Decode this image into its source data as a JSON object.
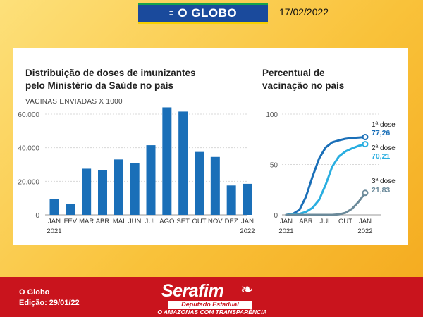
{
  "header": {
    "logo_menu_icon": "menu-icon",
    "logo_text": "O GLOBO",
    "date": "17/02/2022"
  },
  "chart1": {
    "title_line1": "Distribuição de doses de imunizantes",
    "title_line2": "pelo Ministério da Saúde no país",
    "subtitle": "VACINAS ENVIADAS X 1000"
  },
  "chart2": {
    "title_line1": "Percentual de",
    "title_line2": "vacinação no país",
    "labels": {
      "dose1_name": "1ª dose",
      "dose1_value": "77,26",
      "dose2_name": "2ª dose",
      "dose2_value": "70,21",
      "dose3_name": "3ª dose",
      "dose3_value": "21,83"
    }
  },
  "chart_data": [
    {
      "type": "bar",
      "title": "Distribuição de doses de imunizantes pelo Ministério da Saúde no país",
      "ylabel": "VACINAS ENVIADAS X 1000",
      "categories": [
        "JAN",
        "FEV",
        "MAR",
        "ABR",
        "MAI",
        "JUN",
        "JUL",
        "AGO",
        "SET",
        "OUT",
        "NOV",
        "DEZ",
        "JAN"
      ],
      "year_labels": [
        "2021",
        "2022"
      ],
      "values": [
        9500,
        6500,
        27500,
        26500,
        33000,
        31000,
        41500,
        64000,
        61500,
        37500,
        34500,
        17500,
        18500
      ],
      "ylim": [
        0,
        64000
      ],
      "yticks": [
        0,
        20000,
        40000,
        60000
      ],
      "ytick_labels": [
        "0",
        "20.000",
        "40.000",
        "60.000"
      ],
      "grid": true,
      "color": "#1a6fb8"
    },
    {
      "type": "line",
      "title": "Percentual de vacinação no país",
      "x_ticks": [
        "JAN",
        "ABR",
        "JUL",
        "OUT",
        "JAN"
      ],
      "year_labels": [
        "2021",
        "2022"
      ],
      "ylim": [
        0,
        100
      ],
      "yticks": [
        0,
        50,
        100
      ],
      "grid": true,
      "series": [
        {
          "name": "1ª dose",
          "color": "#1a6fb8",
          "end_label": "77,26",
          "points": [
            [
              0,
              0
            ],
            [
              1,
              1
            ],
            [
              2,
              5
            ],
            [
              3,
              18
            ],
            [
              4,
              38
            ],
            [
              5,
              56
            ],
            [
              6,
              67
            ],
            [
              7,
              72
            ],
            [
              8,
              74
            ],
            [
              9,
              75.5
            ],
            [
              10,
              76.3
            ],
            [
              11,
              76.8
            ],
            [
              12,
              77.26
            ]
          ]
        },
        {
          "name": "2ª dose",
          "color": "#29aee0",
          "end_label": "70,21",
          "points": [
            [
              0,
              0
            ],
            [
              1,
              0.5
            ],
            [
              2,
              1
            ],
            [
              3,
              3
            ],
            [
              4,
              7
            ],
            [
              5,
              15
            ],
            [
              6,
              30
            ],
            [
              7,
              48
            ],
            [
              8,
              58
            ],
            [
              9,
              63
            ],
            [
              10,
              66
            ],
            [
              11,
              68.5
            ],
            [
              12,
              70.21
            ]
          ]
        },
        {
          "name": "3ª dose",
          "color": "#6b8a9a",
          "end_label": "21,83",
          "points": [
            [
              0,
              0
            ],
            [
              1,
              0
            ],
            [
              2,
              0
            ],
            [
              3,
              0
            ],
            [
              4,
              0
            ],
            [
              5,
              0
            ],
            [
              6,
              0
            ],
            [
              7,
              0
            ],
            [
              8,
              0.5
            ],
            [
              9,
              2
            ],
            [
              10,
              6
            ],
            [
              11,
              13
            ],
            [
              12,
              21.83
            ]
          ]
        }
      ]
    }
  ],
  "footer": {
    "source": "O Globo",
    "edition": "Edição: 29/01/22",
    "brand_name": "Serafim",
    "brand_tag": "Deputado Estadual",
    "brand_slogan": "O AMAZONAS COM TRANSPARÊNCIA"
  }
}
